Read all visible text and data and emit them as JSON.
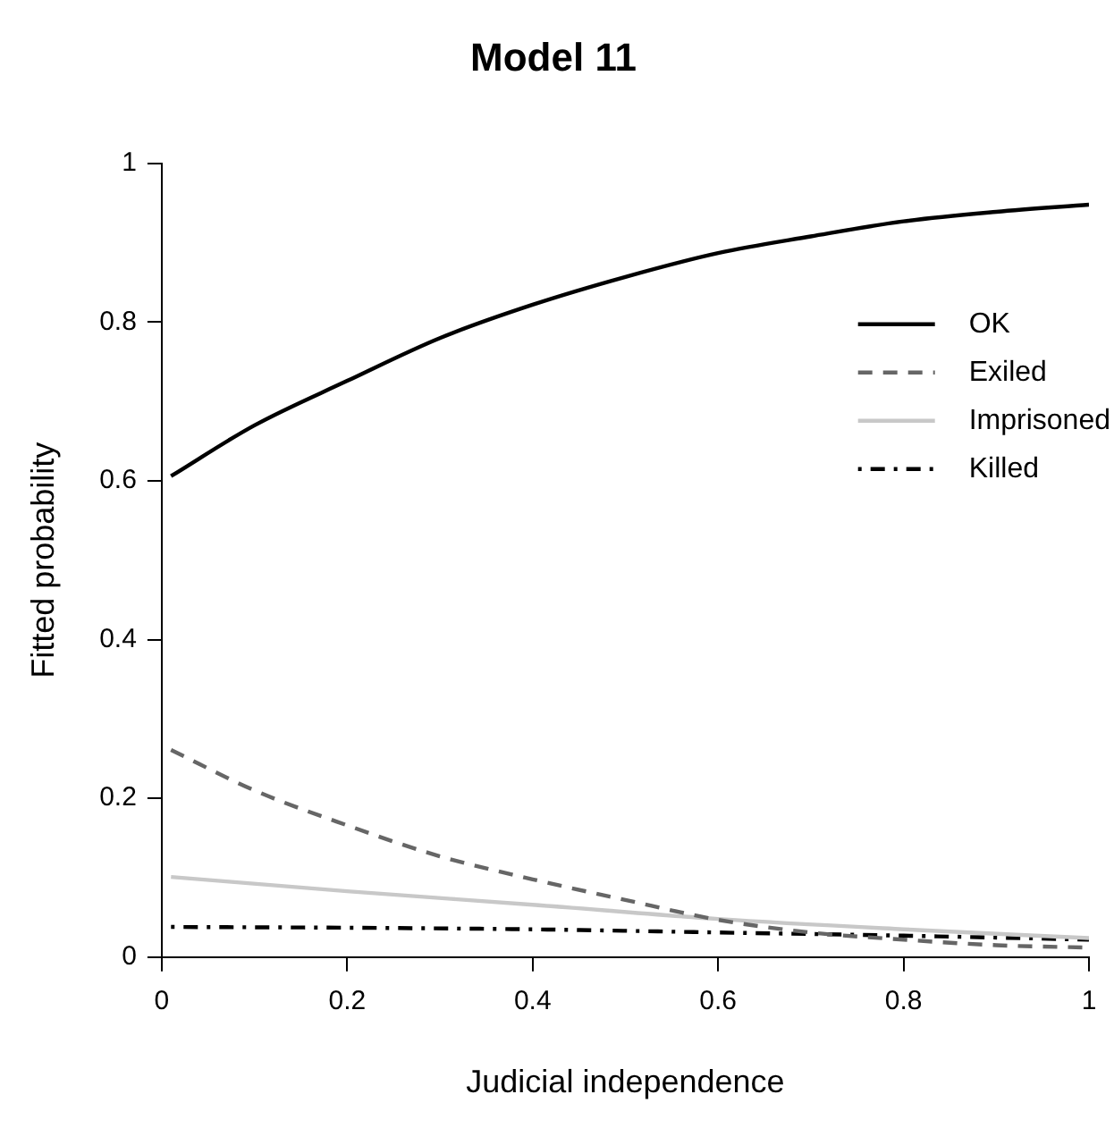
{
  "chart_data": {
    "type": "line",
    "title": "Model 11",
    "xlabel": "Judicial independence",
    "ylabel": "Fitted probability",
    "xlim": [
      0,
      1
    ],
    "xticks": [
      0,
      0.2,
      0.4,
      0.6,
      0.8,
      1
    ],
    "ylim": [
      0,
      1
    ],
    "yticks": [
      0,
      0.2,
      0.4,
      0.6,
      0.8,
      1
    ],
    "grid": false,
    "legend": "top right",
    "marker": "none",
    "series": [
      {
        "name": "OK",
        "color": "#000000",
        "line_style": "solid",
        "x": [
          0.01,
          0.1,
          0.2,
          0.3,
          0.4,
          0.5,
          0.6,
          0.7,
          0.8,
          0.9,
          1
        ],
        "values": [
          0.606,
          0.67,
          0.726,
          0.78,
          0.822,
          0.857,
          0.887,
          0.908,
          0.927,
          0.939,
          0.948
        ]
      },
      {
        "name": "Exiled",
        "color": "#666666",
        "line_style": "dashed",
        "x": [
          0.01,
          0.1,
          0.2,
          0.3,
          0.4,
          0.5,
          0.6,
          0.7,
          0.8,
          0.9,
          1
        ],
        "values": [
          0.261,
          0.21,
          0.166,
          0.127,
          0.098,
          0.072,
          0.047,
          0.031,
          0.022,
          0.015,
          0.012
        ]
      },
      {
        "name": "Imprisoned",
        "color": "#c8c8c8",
        "line_style": "solid",
        "x": [
          0.01,
          0.2,
          0.4,
          0.6,
          0.8,
          1
        ],
        "values": [
          0.101,
          0.083,
          0.066,
          0.048,
          0.035,
          0.024
        ]
      },
      {
        "name": "Killed",
        "color": "#000000",
        "line_style": "dashdot",
        "x": [
          0.01,
          0.2,
          0.4,
          0.6,
          0.8,
          1
        ],
        "values": [
          0.038,
          0.037,
          0.035,
          0.031,
          0.027,
          0.022
        ]
      }
    ]
  }
}
